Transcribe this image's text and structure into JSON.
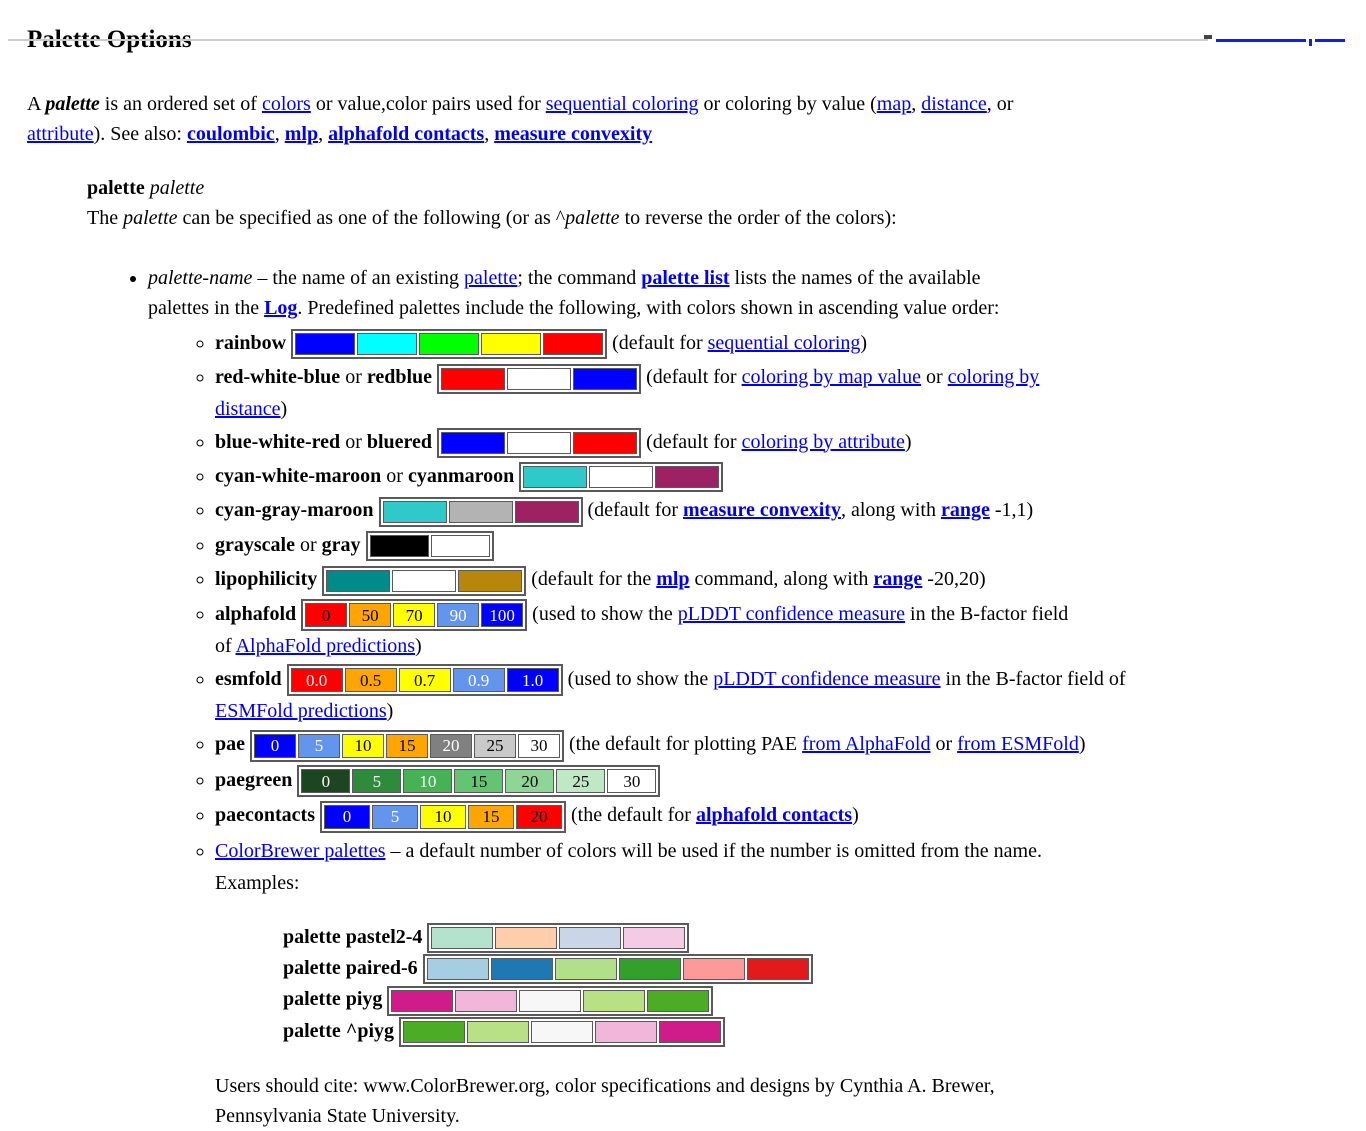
{
  "header": {
    "title": "Palette Options"
  },
  "intro": {
    "segments": [
      {
        "t": "A "
      },
      {
        "t": "palette",
        "b": true,
        "i": true
      },
      {
        "t": " is an ordered set of "
      },
      {
        "t": "colors",
        "a": true
      },
      {
        "t": " or value,color pairs used for "
      },
      {
        "t": "sequential coloring",
        "a": true
      },
      {
        "t": " or coloring by value ("
      },
      {
        "t": "map",
        "a": true
      },
      {
        "t": ", "
      },
      {
        "t": "distance",
        "a": true
      },
      {
        "t": ", or"
      },
      {
        "br": true
      },
      {
        "t": "attribute",
        "a": true
      },
      {
        "t": "). See also: "
      },
      {
        "t": "coulombic",
        "ab": true
      },
      {
        "t": ", "
      },
      {
        "t": "mlp",
        "ab": true
      },
      {
        "t": ", "
      },
      {
        "t": "alphafold contacts",
        "ab": true
      },
      {
        "t": ", "
      },
      {
        "t": "measure convexity",
        "ab": true
      }
    ]
  },
  "usage": {
    "term": [
      {
        "t": "palette",
        "b": true
      },
      {
        "t": " "
      },
      {
        "t": "palette",
        "i": true
      }
    ],
    "definition": [
      {
        "t": "The "
      },
      {
        "t": "palette",
        "i": true
      },
      {
        "t": " can be specified as one of the following (or as ^"
      },
      {
        "t": "palette",
        "i": true
      },
      {
        "t": " to reverse the order of the colors):"
      }
    ]
  },
  "list_intro": {
    "segments": [
      {
        "t": "palette-name",
        "i": true
      },
      {
        "t": " – the name of an existing "
      },
      {
        "t": "palette",
        "a": true
      },
      {
        "t": "; the command "
      },
      {
        "t": "palette list",
        "ab": true
      },
      {
        "t": " lists the names of the available"
      },
      {
        "br": true
      },
      {
        "t": "palettes in the "
      },
      {
        "t": "Log",
        "ab": true
      },
      {
        "t": ". Predefined palettes include the following, with colors shown in ascending value order:"
      }
    ]
  },
  "palettes": [
    {
      "id": "rainbow",
      "labeled": false,
      "label": [
        {
          "t": "rainbow",
          "b": true
        }
      ],
      "cells": [
        {
          "c": "#0000ff"
        },
        {
          "c": "#00ffff"
        },
        {
          "c": "#00ff00"
        },
        {
          "c": "#ffff00"
        },
        {
          "c": "#ff0000"
        }
      ],
      "suffix": [
        {
          "t": "(default for "
        },
        {
          "t": "sequential coloring",
          "a": true
        },
        {
          "t": ")"
        }
      ]
    },
    {
      "id": "redblue",
      "labeled": false,
      "label": [
        {
          "t": "red-white-blue",
          "b": true
        },
        {
          "t": " or "
        },
        {
          "t": "redblue",
          "b": true
        }
      ],
      "cells": [
        {
          "c": "#ff0000"
        },
        {
          "c": "#ffffff"
        },
        {
          "c": "#0000ff"
        }
      ],
      "suffix": [
        {
          "t": "(default for "
        },
        {
          "t": "coloring by map value",
          "a": true
        },
        {
          "t": " or "
        },
        {
          "t": "coloring by",
          "a": true
        },
        {
          "br": true
        },
        {
          "t": "distance",
          "a": true
        },
        {
          "t": ")"
        }
      ]
    },
    {
      "id": "bluered",
      "labeled": false,
      "label": [
        {
          "t": "blue-white-red",
          "b": true
        },
        {
          "t": " or "
        },
        {
          "t": "bluered",
          "b": true
        }
      ],
      "cells": [
        {
          "c": "#0000ff"
        },
        {
          "c": "#ffffff"
        },
        {
          "c": "#ff0000"
        }
      ],
      "suffix": [
        {
          "t": "(default for "
        },
        {
          "t": "coloring by attribute",
          "a": true
        },
        {
          "t": ")"
        }
      ]
    },
    {
      "id": "cyanmaroon",
      "labeled": false,
      "label": [
        {
          "t": "cyan-white-maroon",
          "b": true
        },
        {
          "t": " or "
        },
        {
          "t": "cyanmaroon",
          "b": true
        }
      ],
      "cells": [
        {
          "c": "#30c9c9"
        },
        {
          "c": "#ffffff"
        },
        {
          "c": "#9e2164"
        }
      ],
      "suffix": []
    },
    {
      "id": "cyangraymaroon",
      "labeled": false,
      "label": [
        {
          "t": "cyan-gray-maroon",
          "b": true
        }
      ],
      "cells": [
        {
          "c": "#30c9c9"
        },
        {
          "c": "#b3b3b3"
        },
        {
          "c": "#9e2164"
        }
      ],
      "suffix": [
        {
          "t": "(default for "
        },
        {
          "t": "measure convexity",
          "ab": true
        },
        {
          "t": ", along with "
        },
        {
          "t": "range",
          "ab": true
        },
        {
          "t": " -1,1)"
        }
      ]
    },
    {
      "id": "gray",
      "labeled": false,
      "label": [
        {
          "t": "grayscale",
          "b": true
        },
        {
          "t": " or "
        },
        {
          "t": "gray",
          "b": true
        }
      ],
      "cells": [
        {
          "c": "#000000"
        },
        {
          "c": "#ffffff"
        }
      ],
      "suffix": []
    },
    {
      "id": "lipophilicity",
      "labeled": false,
      "label": [
        {
          "t": "lipophilicity",
          "b": true
        }
      ],
      "cells": [
        {
          "c": "#008b8b"
        },
        {
          "c": "#ffffff"
        },
        {
          "c": "#b8860b"
        }
      ],
      "suffix": [
        {
          "t": "(default for the "
        },
        {
          "t": "mlp",
          "ab": true
        },
        {
          "t": " command, along with "
        },
        {
          "t": "range",
          "ab": true
        },
        {
          "t": " -20,20)"
        }
      ]
    },
    {
      "id": "alphafold",
      "labeled": true,
      "label": [
        {
          "t": "alphafold",
          "b": true
        }
      ],
      "cells": [
        {
          "c": "#ff0000",
          "l": "0"
        },
        {
          "c": "#ffa500",
          "l": "50"
        },
        {
          "c": "#ffff00",
          "l": "70"
        },
        {
          "c": "#6495ed",
          "l": "90",
          "tc": "#ffffff"
        },
        {
          "c": "#0000ff",
          "l": "100",
          "tc": "#ffffff"
        }
      ],
      "suffix": [
        {
          "t": "(used to show the "
        },
        {
          "t": "pLDDT confidence measure",
          "a": true
        },
        {
          "t": " in the B-factor field"
        },
        {
          "br": true
        },
        {
          "t": "of "
        },
        {
          "t": "AlphaFold predictions",
          "a": true
        },
        {
          "t": ")"
        }
      ]
    },
    {
      "id": "esmfold",
      "labeled": true,
      "label": [
        {
          "t": "esmfold",
          "b": true
        }
      ],
      "cells": [
        {
          "c": "#ff0000",
          "l": "0.0",
          "tc": "#ffffff"
        },
        {
          "c": "#ffa500",
          "l": "0.5"
        },
        {
          "c": "#ffff00",
          "l": "0.7"
        },
        {
          "c": "#6495ed",
          "l": "0.9",
          "tc": "#ffffff"
        },
        {
          "c": "#0000ff",
          "l": "1.0",
          "tc": "#ffffff"
        }
      ],
      "suffix": [
        {
          "t": "(used to show the "
        },
        {
          "t": "pLDDT confidence measure",
          "a": true
        },
        {
          "t": " in the B-factor field of"
        },
        {
          "br": true
        },
        {
          "t": "ESMFold predictions",
          "a": true
        },
        {
          "t": ")"
        }
      ]
    },
    {
      "id": "pae",
      "labeled": true,
      "label": [
        {
          "t": "pae",
          "b": true
        }
      ],
      "cells": [
        {
          "c": "#0000ff",
          "l": "0",
          "tc": "#ffffff"
        },
        {
          "c": "#6495ed",
          "l": "5",
          "tc": "#ffffff"
        },
        {
          "c": "#ffff00",
          "l": "10"
        },
        {
          "c": "#ffa500",
          "l": "15"
        },
        {
          "c": "#808080",
          "l": "20",
          "tc": "#ffffff"
        },
        {
          "c": "#c9c9c9",
          "l": "25"
        },
        {
          "c": "#ffffff",
          "l": "30"
        }
      ],
      "suffix": [
        {
          "t": "(the default for plotting PAE "
        },
        {
          "t": "from AlphaFold",
          "a": true
        },
        {
          "t": " or "
        },
        {
          "t": "from ESMFold",
          "a": true
        },
        {
          "t": ")"
        }
      ]
    },
    {
      "id": "paegreen",
      "labeled": true,
      "label": [
        {
          "t": "paegreen",
          "b": true
        }
      ],
      "cells": [
        {
          "c": "#1c4620",
          "l": "0",
          "tc": "#ffffff"
        },
        {
          "c": "#2d8b3a",
          "l": "5",
          "tc": "#ffffff"
        },
        {
          "c": "#46b254",
          "l": "10",
          "tc": "#ffffff"
        },
        {
          "c": "#63c471",
          "l": "15"
        },
        {
          "c": "#8dd696",
          "l": "20"
        },
        {
          "c": "#bfe9c3",
          "l": "25"
        },
        {
          "c": "#ffffff",
          "l": "30"
        }
      ],
      "suffix": []
    },
    {
      "id": "paecontacts",
      "labeled": true,
      "label": [
        {
          "t": "paecontacts",
          "b": true
        }
      ],
      "cells": [
        {
          "c": "#0000ff",
          "l": "0",
          "tc": "#ffffff"
        },
        {
          "c": "#6495ed",
          "l": "5",
          "tc": "#ffffff"
        },
        {
          "c": "#ffff00",
          "l": "10"
        },
        {
          "c": "#ffa500",
          "l": "15"
        },
        {
          "c": "#ff0000",
          "l": "20"
        }
      ],
      "suffix": [
        {
          "t": "(the default for "
        },
        {
          "t": "alphafold contacts",
          "ab": true
        },
        {
          "t": ")"
        }
      ]
    }
  ],
  "colorbrewer": {
    "segments": [
      {
        "t": "ColorBrewer palettes",
        "a": true
      },
      {
        "t": " – a default number of colors will be used if the number is omitted from the name."
      }
    ],
    "examples_label": "Examples:"
  },
  "examples": [
    {
      "id": "pastel2-4",
      "label": "palette pastel2-4",
      "cells": [
        {
          "c": "#b3e2cd"
        },
        {
          "c": "#fdcdac"
        },
        {
          "c": "#cbd5e8"
        },
        {
          "c": "#f4cae4"
        }
      ]
    },
    {
      "id": "paired-6",
      "label": "palette paired-6",
      "cells": [
        {
          "c": "#a6cee3"
        },
        {
          "c": "#1f78b4"
        },
        {
          "c": "#b2df8a"
        },
        {
          "c": "#33a02c"
        },
        {
          "c": "#fb9a99"
        },
        {
          "c": "#e31a1c"
        }
      ]
    },
    {
      "id": "piyg",
      "label": "palette piyg",
      "cells": [
        {
          "c": "#d01c8b"
        },
        {
          "c": "#f1b6da"
        },
        {
          "c": "#f7f7f7"
        },
        {
          "c": "#b8e186"
        },
        {
          "c": "#4dac26"
        }
      ]
    },
    {
      "id": "piyg-rev",
      "label": "palette ^piyg",
      "cells": [
        {
          "c": "#4dac26"
        },
        {
          "c": "#b8e186"
        },
        {
          "c": "#f7f7f7"
        },
        {
          "c": "#f1b6da"
        },
        {
          "c": "#d01c8b"
        }
      ]
    }
  ],
  "citation": {
    "segments": [
      {
        "t": "Users should cite: www.ColorBrewer.org, color specifications and designs by Cynthia A. Brewer,"
      },
      {
        "br": true
      },
      {
        "t": "Pennsylvania State University."
      }
    ]
  },
  "colors": {
    "link_blue": "#0000ee",
    "swatch_border": "#5a5a5a"
  }
}
